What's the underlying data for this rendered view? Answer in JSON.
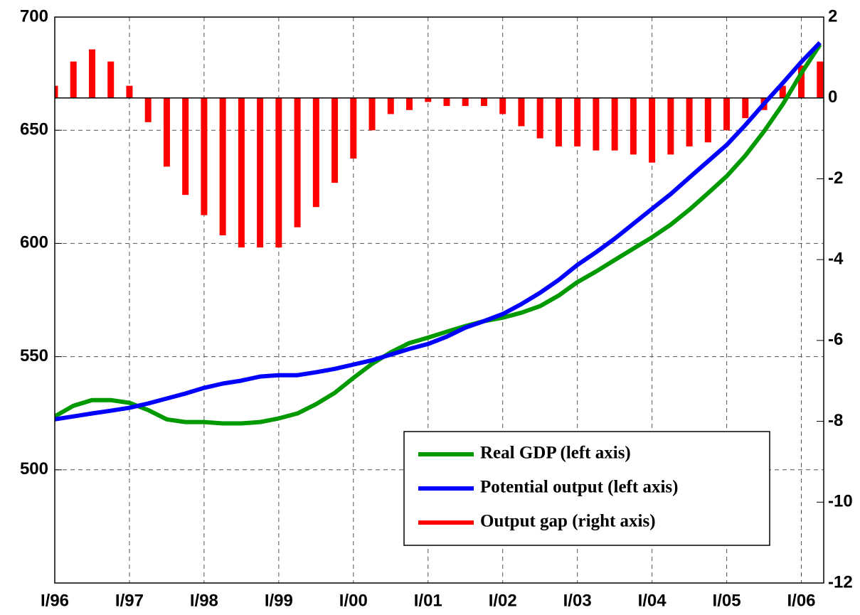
{
  "chart_data": {
    "type": "bar-line",
    "categories": [
      "I/96",
      null,
      null,
      null,
      "I/97",
      null,
      null,
      null,
      "I/98",
      null,
      null,
      null,
      "I/99",
      null,
      null,
      null,
      "I/00",
      null,
      null,
      null,
      "I/01",
      null,
      null,
      null,
      "I/02",
      null,
      null,
      null,
      "I/03",
      null,
      null,
      null,
      "I/04",
      null,
      null,
      null,
      "I/05",
      null,
      null,
      null,
      "I/06",
      null
    ],
    "series": [
      {
        "name": "Real GDP (left axis)",
        "type": "line",
        "axis": "y",
        "color": "#009900",
        "values": [
          523.6,
          528.3,
          530.8,
          530.8,
          529.6,
          526.4,
          522.3,
          521.1,
          521.1,
          520.5,
          520.5,
          521.1,
          522.7,
          524.9,
          529,
          534,
          540.6,
          546.8,
          551.9,
          556,
          558.4,
          561,
          563.5,
          565.7,
          567.2,
          569.4,
          572.3,
          577,
          582.9,
          587.6,
          592.7,
          597.7,
          602.7,
          608.3,
          614.9,
          622.2,
          629.7,
          638.8,
          649.5,
          661.4,
          675.2,
          687.8
        ]
      },
      {
        "name": "Potential output (left axis)",
        "type": "line",
        "axis": "y",
        "color": "#0000ff",
        "values": [
          522.3,
          523.6,
          524.9,
          526.1,
          527.4,
          529.3,
          531.5,
          533.7,
          536.2,
          538.1,
          539.4,
          541.2,
          541.8,
          541.8,
          543.1,
          544.6,
          546.5,
          548.4,
          550.9,
          553.4,
          555.6,
          558.8,
          562.8,
          565.7,
          568.8,
          573.2,
          578.2,
          583.9,
          590.5,
          596.1,
          602.1,
          608.7,
          615.3,
          621.8,
          629.1,
          636.3,
          643.5,
          652.3,
          661.7,
          670.8,
          680.2,
          688.7
        ]
      },
      {
        "name": "Output gap (right axis)",
        "type": "bar",
        "axis": "y2",
        "color": "#ff0000",
        "values": [
          0.3,
          0.9,
          1.2,
          0.9,
          0.3,
          -0.6,
          -1.7,
          -2.4,
          -2.9,
          -3.4,
          -3.7,
          -3.7,
          -3.7,
          -3.2,
          -2.7,
          -2.1,
          -1.5,
          -0.8,
          -0.4,
          -0.3,
          -0.1,
          -0.2,
          -0.2,
          -0.2,
          -0.4,
          -0.7,
          -1,
          -1.2,
          -1.2,
          -1.3,
          -1.3,
          -1.4,
          -1.6,
          -1.4,
          -1.2,
          -1.1,
          -0.8,
          -0.5,
          -0.3,
          0.3,
          0.8,
          0.9
        ]
      }
    ],
    "ylim": [
      450,
      700
    ],
    "yticks": [
      500,
      550,
      600,
      650,
      700
    ],
    "y2lim": [
      -12,
      2
    ],
    "y2ticks": [
      -12,
      -10,
      -8,
      -6,
      -4,
      -2,
      0,
      2
    ],
    "grid": true,
    "legend": "lower right"
  }
}
